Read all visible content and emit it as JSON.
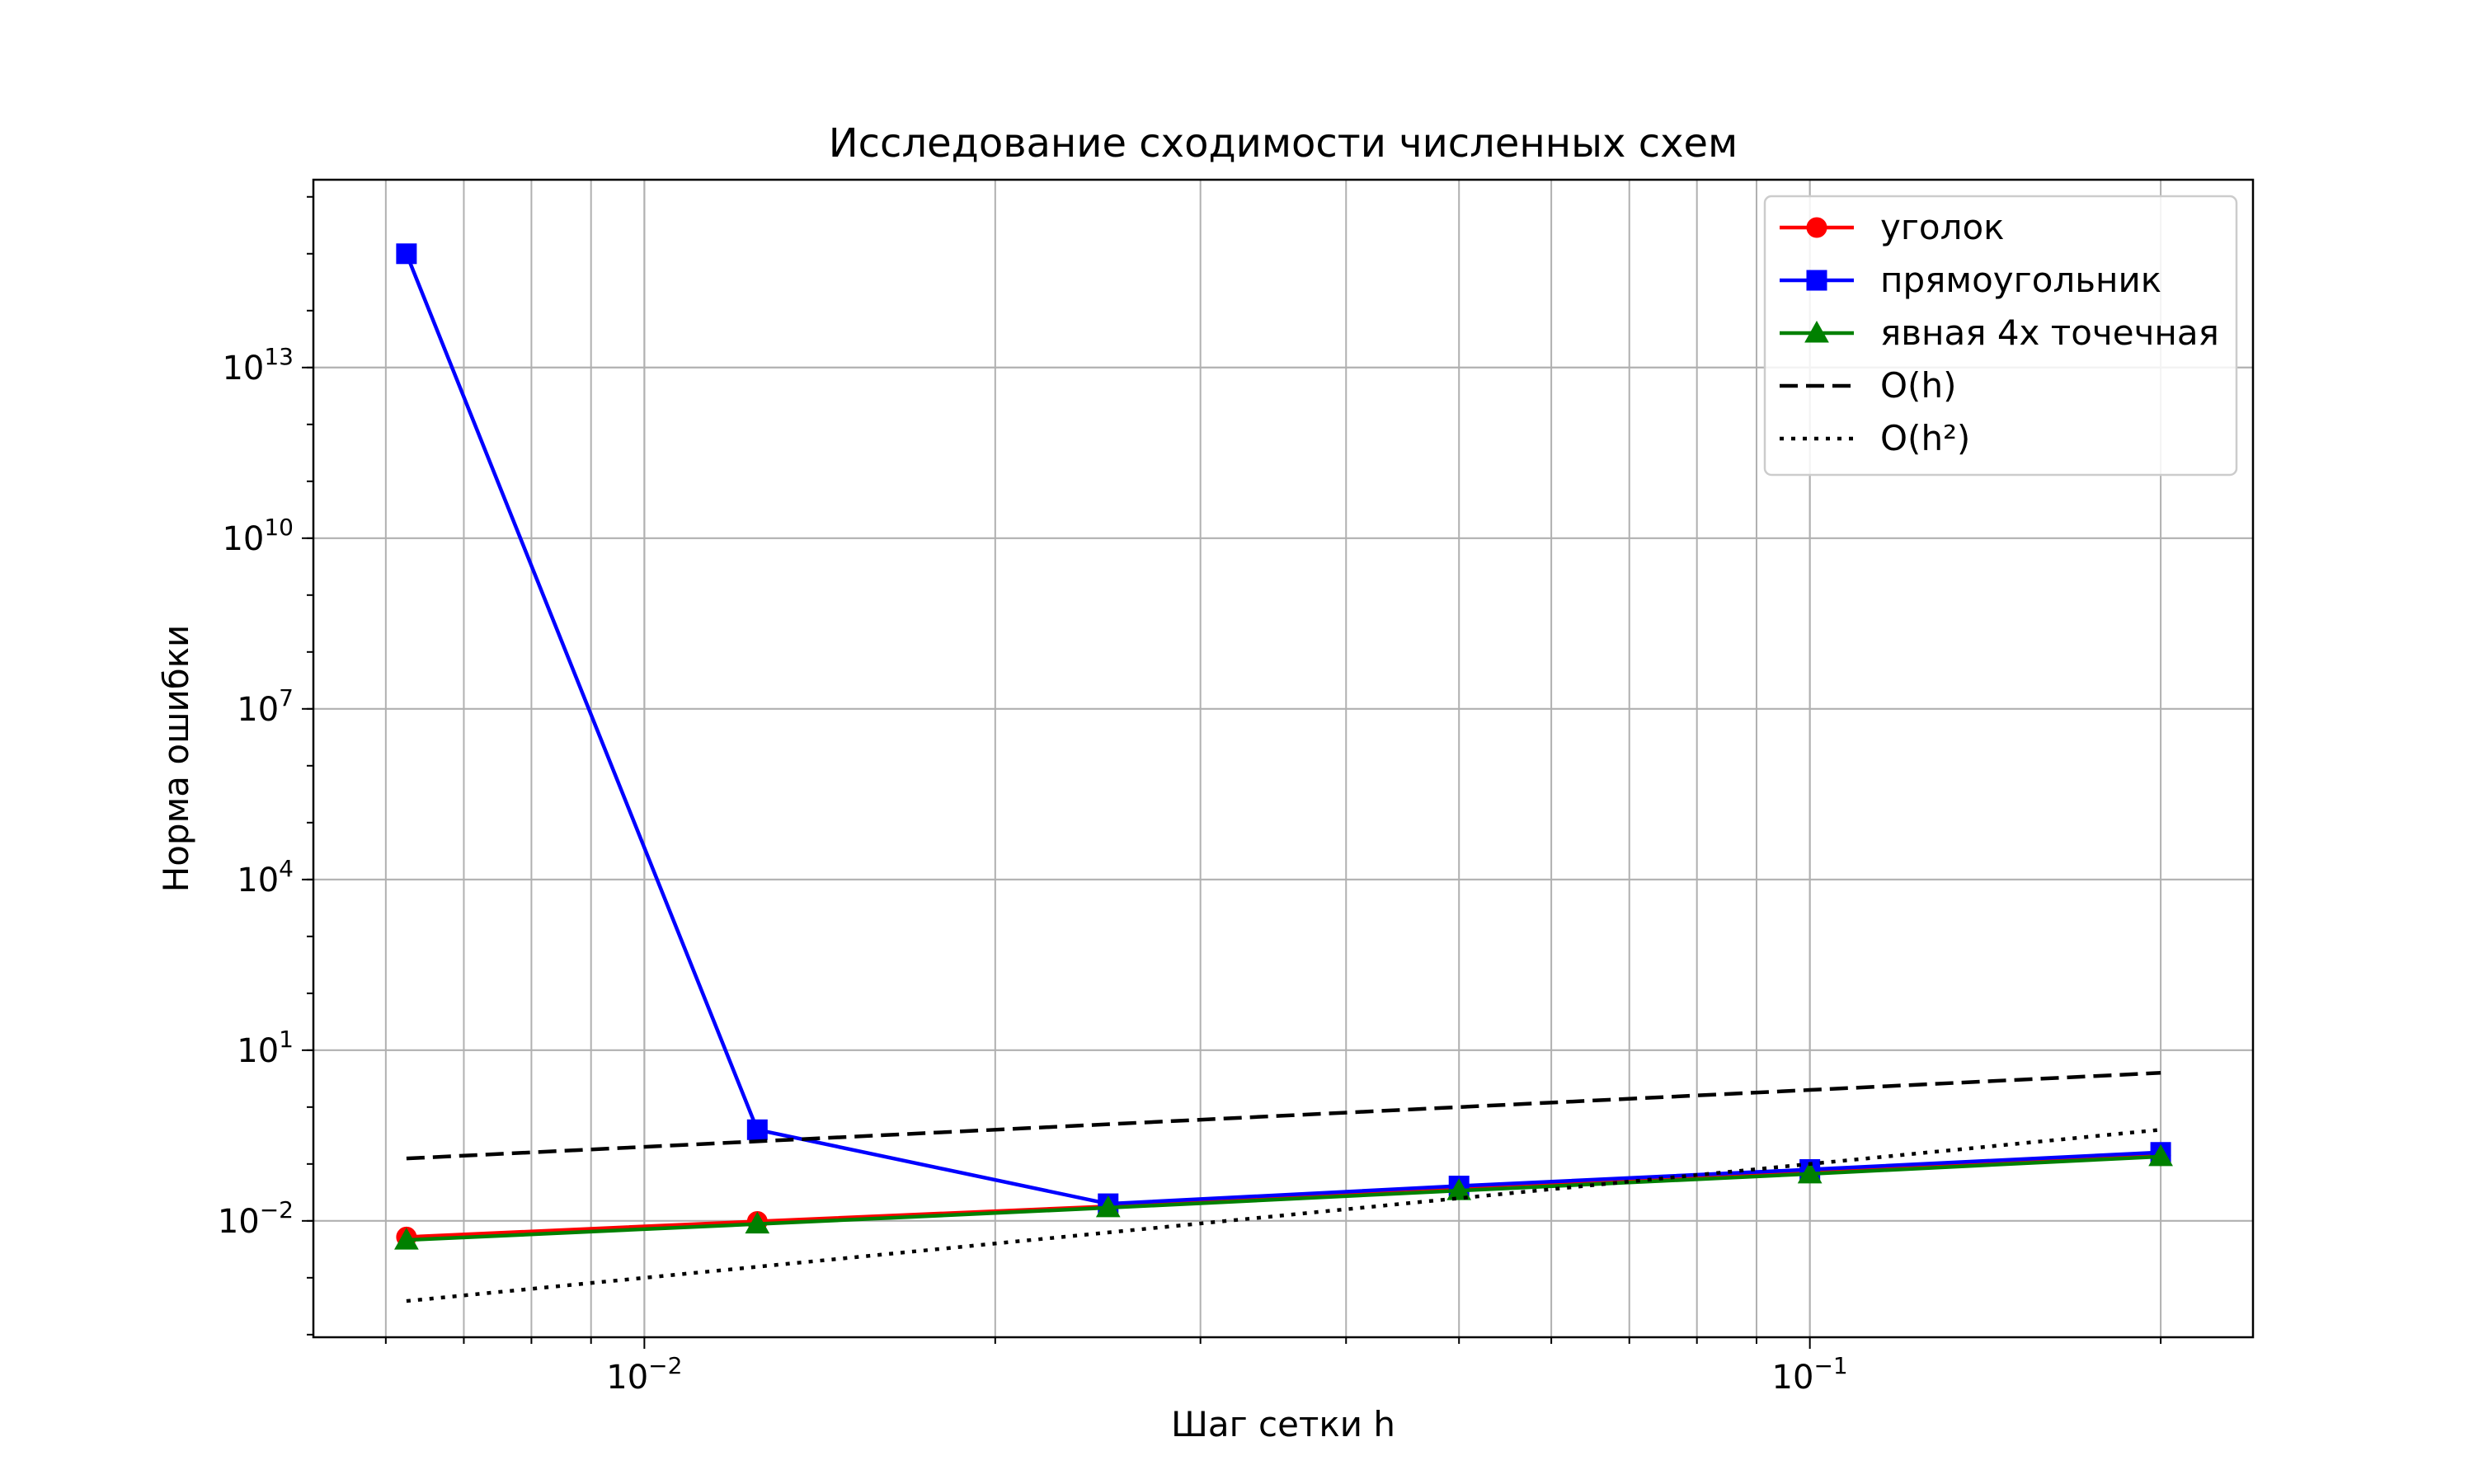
{
  "chart_data": {
    "type": "line",
    "title": "Исследование сходимости численных схем",
    "xlabel": "Шаг сетки h",
    "ylabel": "Норма ошибки",
    "x_scale": "log",
    "y_scale": "log",
    "xlim": [
      0.0052,
      0.24
    ],
    "ylim": [
      9e-05,
      20000000000000000
    ],
    "grid": "both-x, major-y",
    "legend_position": "top-right",
    "x_ticks": [
      {
        "value": 0.01,
        "base": "10",
        "exp": "−2"
      },
      {
        "value": 0.1,
        "base": "10",
        "exp": "−1"
      }
    ],
    "y_ticks": [
      {
        "value": 0.01,
        "base": "10",
        "exp": "−2"
      },
      {
        "value": 10,
        "base": "10",
        "exp": "1"
      },
      {
        "value": 10000,
        "base": "10",
        "exp": "4"
      },
      {
        "value": 10000000,
        "base": "10",
        "exp": "7"
      },
      {
        "value": 10000000000,
        "base": "10",
        "exp": "10"
      },
      {
        "value": 10000000000000,
        "base": "10",
        "exp": "13"
      }
    ],
    "x": [
      0.00625,
      0.0125,
      0.025,
      0.05,
      0.1,
      0.2
    ],
    "series": [
      {
        "name": "уголок",
        "color": "#ff0000",
        "marker": "circle",
        "dash": "solid",
        "values": [
          0.0052,
          0.0098,
          0.018,
          0.036,
          0.07,
          0.14
        ]
      },
      {
        "name": "прямоугольник",
        "color": "#0000ff",
        "marker": "square",
        "dash": "solid",
        "values": [
          1000000000000000,
          0.4,
          0.02,
          0.041,
          0.08,
          0.16
        ]
      },
      {
        "name": "явная 4х точечная",
        "color": "#008000",
        "marker": "triangle",
        "dash": "solid",
        "values": [
          0.0046,
          0.0088,
          0.017,
          0.034,
          0.067,
          0.135
        ]
      },
      {
        "name": "O(h)",
        "color": "#000000",
        "marker": "none",
        "dash": "dashed",
        "values": [
          0.125,
          0.25,
          0.5,
          1,
          2,
          4
        ]
      },
      {
        "name": "O(h²)",
        "color": "#000000",
        "marker": "none",
        "dash": "dotted",
        "values": [
          0.00039,
          0.00156,
          0.00625,
          0.025,
          0.1,
          0.4
        ]
      }
    ]
  }
}
